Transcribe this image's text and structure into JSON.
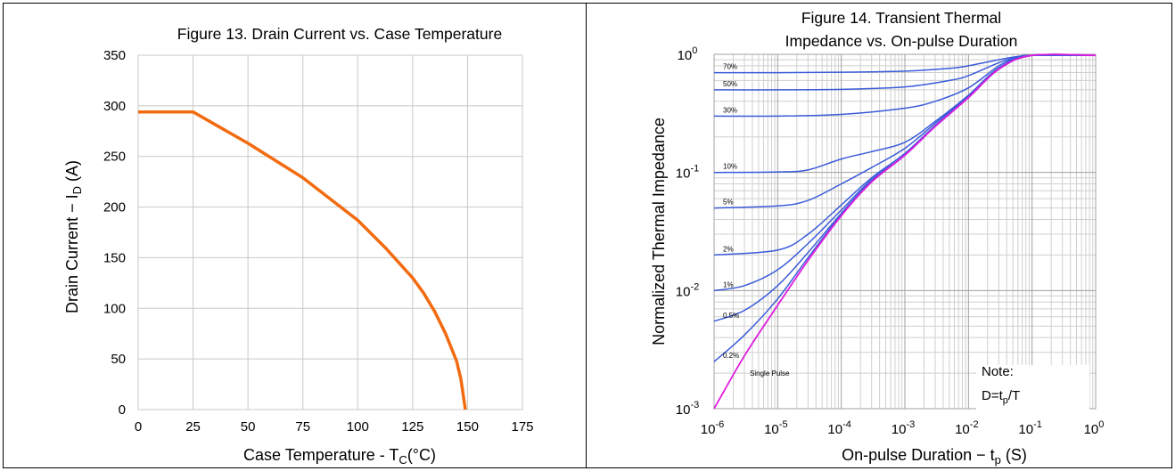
{
  "chart_data": [
    {
      "type": "line",
      "title": "Figure 13. Drain Current vs. Case Temperature",
      "xlabel_main": "Case Temperature - T",
      "xlabel_sub": "C",
      "xlabel_tail": "(°C)",
      "ylabel_main": "Drain Current − I",
      "ylabel_sub": "D",
      "ylabel_tail": " (A)",
      "xlim": [
        0,
        175
      ],
      "ylim": [
        0,
        350
      ],
      "xticks": [
        0,
        25,
        50,
        75,
        100,
        125,
        150,
        175
      ],
      "yticks": [
        0,
        50,
        100,
        150,
        200,
        250,
        300,
        350
      ],
      "grid": true,
      "line_color": "#f26b10",
      "series": [
        {
          "x": [
            0,
            25,
            50,
            75,
            100,
            112.5,
            125,
            130,
            135,
            140,
            145,
            147,
            149
          ],
          "y": [
            294,
            294,
            263,
            229,
            187,
            160,
            130,
            115,
            97,
            75,
            48,
            30,
            0
          ]
        }
      ]
    },
    {
      "type": "line",
      "title_line1": "Figure 14. Transient Thermal",
      "title_line2": "Impedance vs. On-pulse Duration",
      "xlabel_main": "On-pulse Duration − t",
      "xlabel_sub": "p",
      "xlabel_tail": " (S)",
      "ylabel": "Normalized Thermal Impedance",
      "x_scale": "log",
      "y_scale": "log",
      "xlim": [
        1e-06,
        1
      ],
      "ylim": [
        0.001,
        1
      ],
      "xtick_exponents": [
        -6,
        -5,
        -4,
        -3,
        -2,
        -1,
        0
      ],
      "ytick_exponents": [
        -3,
        -2,
        -1,
        0
      ],
      "tick_base": "10",
      "grid": true,
      "note_line1": "Note:",
      "note_line2_main": "D=t",
      "note_line2_sub": "p",
      "note_line2_tail": "/T",
      "duty_color": "#3a5bd9",
      "single_color": "#e01be0",
      "duty_series": [
        {
          "name": "70%",
          "label": "70%",
          "x": [
            1e-06,
            1e-05,
            0.0001,
            0.001,
            0.005,
            0.01,
            0.03,
            0.06,
            0.1,
            1
          ],
          "y": [
            0.7,
            0.7,
            0.705,
            0.72,
            0.76,
            0.8,
            0.9,
            0.96,
            0.98,
            0.98
          ]
        },
        {
          "name": "50%",
          "label": "50%",
          "x": [
            1e-06,
            1e-05,
            0.0001,
            0.001,
            0.005,
            0.01,
            0.03,
            0.06,
            0.1,
            1
          ],
          "y": [
            0.5,
            0.5,
            0.505,
            0.53,
            0.6,
            0.66,
            0.85,
            0.95,
            0.98,
            0.98
          ]
        },
        {
          "name": "30%",
          "label": "30%",
          "x": [
            1e-06,
            1e-05,
            0.0001,
            0.001,
            0.003,
            0.01,
            0.03,
            0.06,
            0.1,
            1
          ],
          "y": [
            0.3,
            0.3,
            0.31,
            0.35,
            0.4,
            0.52,
            0.8,
            0.94,
            0.98,
            0.98
          ]
        },
        {
          "name": "10%",
          "label": "10%",
          "x": [
            1e-06,
            1e-05,
            3e-05,
            0.0001,
            0.0003,
            0.001,
            0.003,
            0.01,
            0.03,
            0.1,
            1
          ],
          "y": [
            0.1,
            0.101,
            0.105,
            0.13,
            0.15,
            0.18,
            0.27,
            0.45,
            0.77,
            0.98,
            0.98
          ]
        },
        {
          "name": "5%",
          "label": "5%",
          "x": [
            1e-06,
            1e-05,
            3e-05,
            0.0001,
            0.0003,
            0.001,
            0.003,
            0.01,
            0.03,
            0.1,
            1
          ],
          "y": [
            0.05,
            0.052,
            0.058,
            0.08,
            0.11,
            0.16,
            0.26,
            0.44,
            0.76,
            0.98,
            0.98
          ]
        },
        {
          "name": "2%",
          "label": "2%",
          "x": [
            1e-06,
            1e-05,
            3e-05,
            0.0001,
            0.0003,
            0.001,
            0.003,
            0.01,
            0.03,
            0.1,
            1
          ],
          "y": [
            0.02,
            0.022,
            0.03,
            0.053,
            0.09,
            0.145,
            0.25,
            0.43,
            0.75,
            0.98,
            0.98
          ]
        },
        {
          "name": "1%",
          "label": "1%",
          "x": [
            1e-06,
            3e-06,
            1e-05,
            3e-05,
            0.0001,
            0.0003,
            0.001,
            0.003,
            0.01,
            0.03,
            0.1,
            1
          ],
          "y": [
            0.01,
            0.011,
            0.015,
            0.025,
            0.048,
            0.087,
            0.14,
            0.245,
            0.43,
            0.75,
            0.98,
            0.98
          ]
        },
        {
          "name": "0.5%",
          "label": "0.5%",
          "x": [
            1e-06,
            3e-06,
            1e-05,
            3e-05,
            0.0001,
            0.0003,
            0.001,
            0.003,
            0.01,
            0.03,
            0.1,
            1
          ],
          "y": [
            0.0055,
            0.0068,
            0.011,
            0.021,
            0.045,
            0.085,
            0.14,
            0.245,
            0.43,
            0.75,
            0.98,
            0.98
          ]
        },
        {
          "name": "0.2%",
          "label": "0.2%",
          "x": [
            1e-06,
            3e-06,
            1e-05,
            3e-05,
            0.0001,
            0.0003,
            0.001,
            0.003,
            0.01,
            0.03,
            0.1,
            1
          ],
          "y": [
            0.0025,
            0.0042,
            0.0085,
            0.019,
            0.044,
            0.084,
            0.14,
            0.245,
            0.43,
            0.75,
            0.98,
            0.98
          ]
        }
      ],
      "single_pulse": {
        "name": "Single Pulse",
        "label": "Single Pulse",
        "x": [
          1e-06,
          3e-06,
          1e-05,
          3e-05,
          0.0001,
          0.0003,
          0.001,
          0.003,
          0.01,
          0.03,
          0.1,
          1
        ],
        "y": [
          0.001,
          0.0028,
          0.0075,
          0.018,
          0.043,
          0.083,
          0.14,
          0.245,
          0.43,
          0.75,
          0.98,
          0.98
        ]
      }
    }
  ]
}
